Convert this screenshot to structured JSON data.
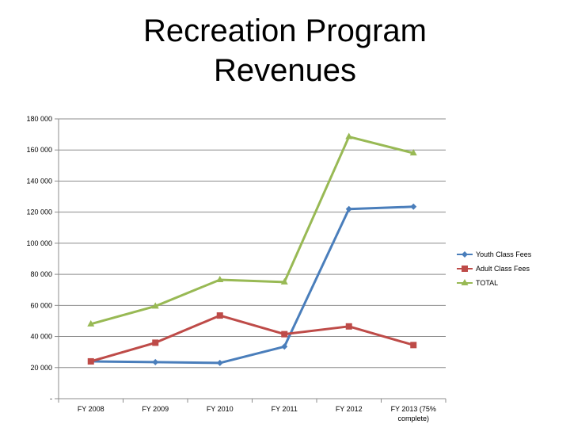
{
  "slide": {
    "title_line1": "Recreation Program",
    "title_line2": "Revenues"
  },
  "chart_data": {
    "type": "line",
    "title": "Recreation Program Revenues",
    "categories": [
      "FY 2008",
      "FY 2009",
      "FY 2010",
      "FY 2011",
      "FY 2012",
      "FY 2013 (75% complete)"
    ],
    "category_label_lines": [
      [
        "FY 2008"
      ],
      [
        "FY 2009"
      ],
      [
        "FY 2010"
      ],
      [
        "FY 2011"
      ],
      [
        "FY 2012"
      ],
      [
        "FY 2013 (75%",
        "complete)"
      ]
    ],
    "ylim": [
      0,
      180000
    ],
    "yticks": [
      0,
      20000,
      40000,
      60000,
      80000,
      100000,
      120000,
      140000,
      160000,
      180000
    ],
    "ytick_labels": [
      "-",
      "20 000",
      "40 000",
      "60 000",
      "80 000",
      "100 000",
      "120 000",
      "140 000",
      "160 000",
      "180 000"
    ],
    "grid": true,
    "legend_position": "right",
    "series": [
      {
        "name": "Youth Class Fees",
        "color": "#4a7ebb",
        "marker": "diamond",
        "values": [
          24000,
          23500,
          23000,
          33500,
          122000,
          123500
        ]
      },
      {
        "name": "Adult Class Fees",
        "color": "#be4b48",
        "marker": "square",
        "values": [
          24000,
          36000,
          53500,
          41500,
          46500,
          34500
        ]
      },
      {
        "name": "TOTAL",
        "color": "#98b954",
        "marker": "triangle",
        "values": [
          48000,
          59500,
          76500,
          75000,
          168500,
          158000
        ]
      }
    ]
  }
}
